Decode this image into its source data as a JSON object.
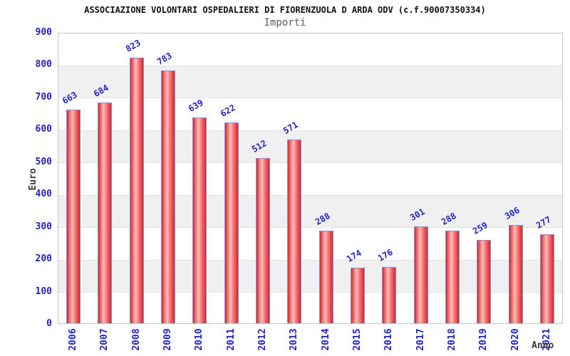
{
  "chart_data": {
    "type": "bar",
    "title": "ASSOCIAZIONE VOLONTARI OSPEDALIERI DI FIORENZUOLA D ARDA ODV (c.f.90007350334)",
    "subtitle": "Importi",
    "xlabel": "Anno",
    "ylabel": "Euro",
    "categories": [
      "2006",
      "2007",
      "2008",
      "2009",
      "2010",
      "2011",
      "2012",
      "2013",
      "2014",
      "2015",
      "2016",
      "2017",
      "2018",
      "2019",
      "2020",
      "2021"
    ],
    "values": [
      663,
      684,
      823,
      783,
      639,
      622,
      512,
      571,
      288,
      174,
      176,
      301,
      288,
      259,
      306,
      277
    ],
    "ylim": [
      0,
      900
    ],
    "yticks": [
      0,
      100,
      200,
      300,
      400,
      500,
      600,
      700,
      800,
      900
    ],
    "legend_position": "none",
    "grid": "alternating horizontal gray/white bands every 100 units",
    "bar_value_labels": true,
    "colors": {
      "bar_fill": "#e62020",
      "bar_mid": "#f07070",
      "bar_highlight": "#f8bcbc",
      "bar_border": "#5f9ff3",
      "label_blue": "#2323cb",
      "title_color": "#111111",
      "subtitle_color": "#5f5f5f",
      "axis_title_color": "#3a3a3a",
      "band_gray": "#f0f0f0",
      "plot_border": "#c6c6c6"
    }
  }
}
